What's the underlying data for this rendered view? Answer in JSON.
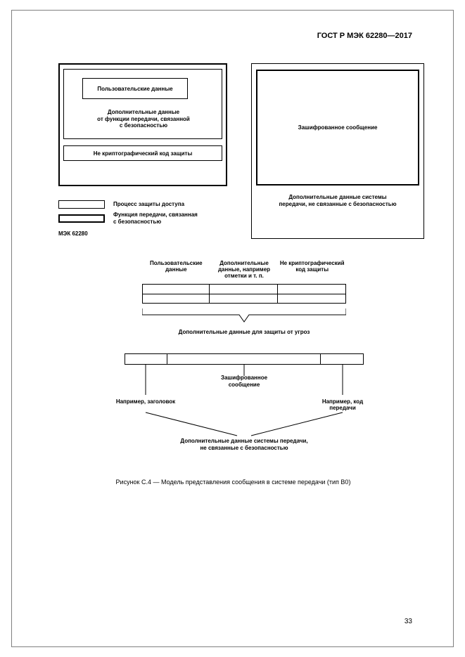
{
  "header": {
    "title": "ГОСТ Р МЭК 62280—2017"
  },
  "page_number": "33",
  "top": {
    "user_data": "Пользовательские данные",
    "add_data": "Дополнительные данные\nот функции передачи, связанной\nс безопасностью",
    "non_crypt": "Не криптографический код защиты",
    "encrypted": "Зашифрованное сообщение",
    "right_caption": "Дополнительные данные системы\nпередачи, не связанные с безопасностью",
    "legend1": "Процесс защиты доступа",
    "legend2": "Функция передачи, связанная\nс безопасностью",
    "std": "МЭК 62280"
  },
  "mid": {
    "h1": "Пользовательские\nданные",
    "h2": "Дополнительные\nданные, например\nотметки и т. п.",
    "h3": "Не криптографический\nкод защиты",
    "caption": "Дополнительные данные для защиты от угроз"
  },
  "bot": {
    "center": "Зашифрованное\nсообщение",
    "left": "Например, заголовок",
    "right": "Например, код\nпередачи",
    "caption": "Дополнительные данные системы передачи,\nне связанные с безопасностью"
  },
  "figure_caption": "Рисунок С.4 — Модель представления сообщения в системе передачи (тип В0)",
  "colors": {
    "border": "#000000",
    "text": "#000000",
    "frame": "#808080",
    "bg": "#ffffff"
  }
}
